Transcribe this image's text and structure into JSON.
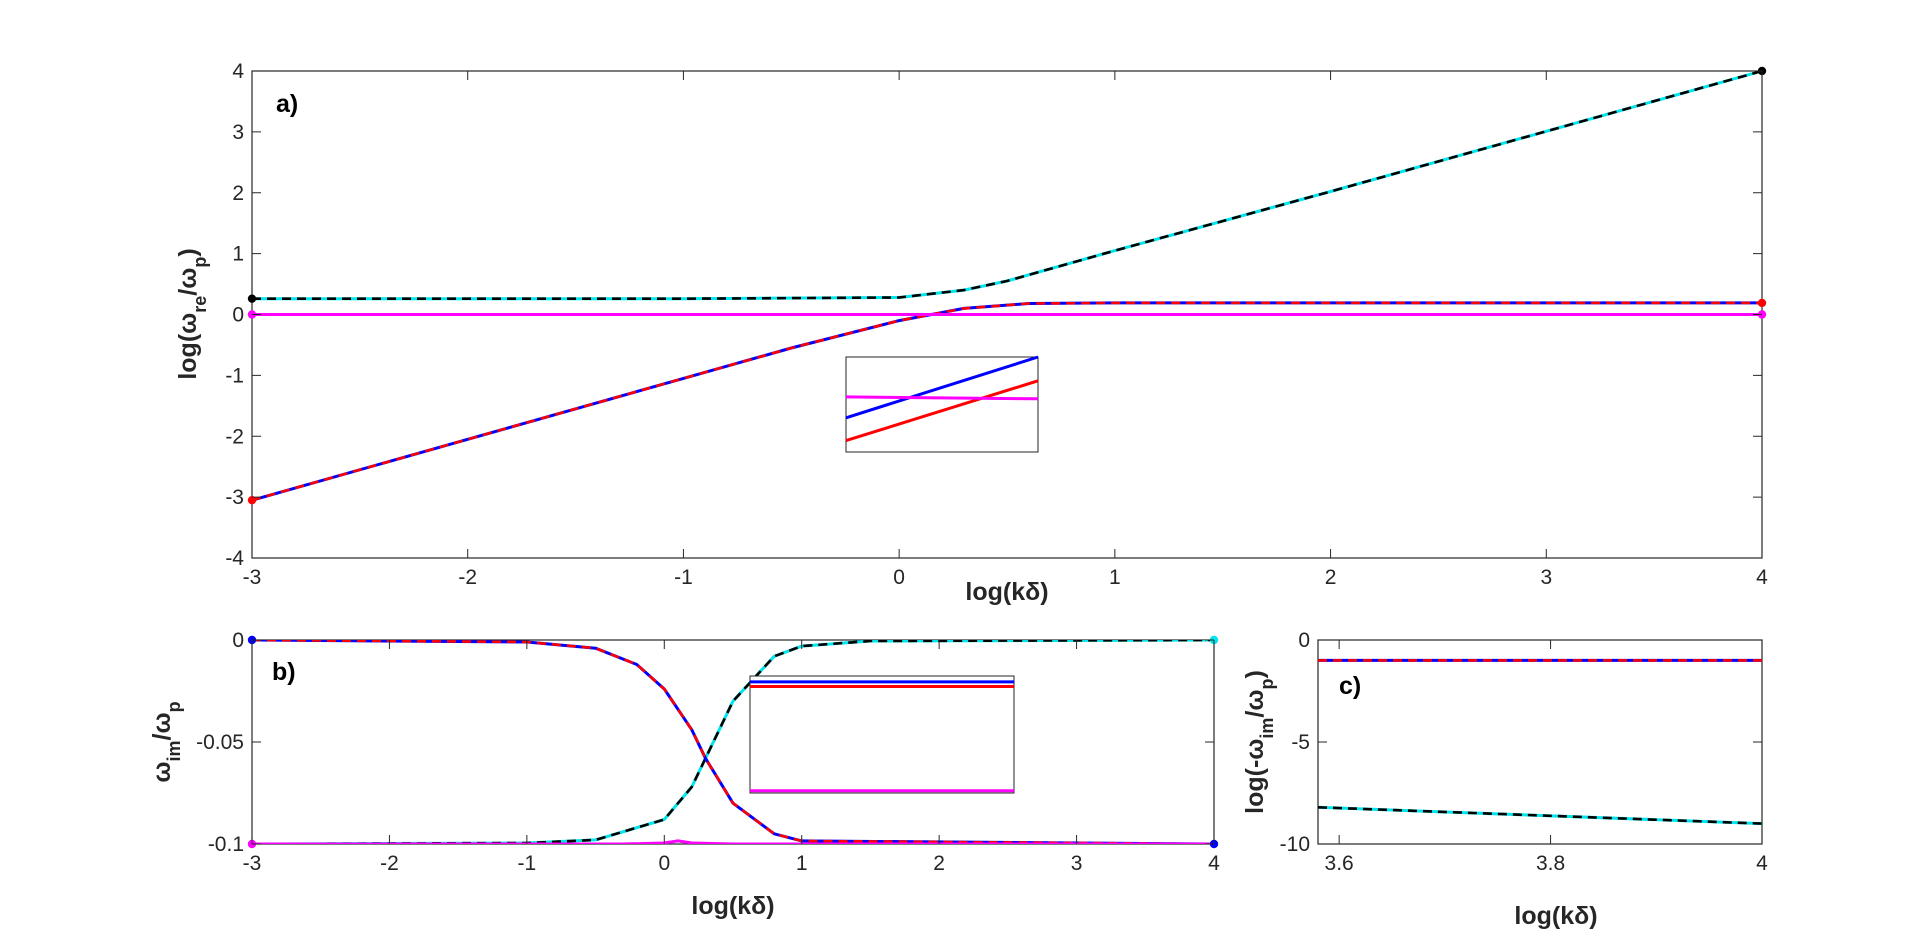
{
  "chart_data": [
    {
      "panel_label": "a)",
      "type": "line",
      "xlabel": "log(kδ)",
      "ylabel": "log(ω_re/ω_p)",
      "xlim": [
        -3,
        4
      ],
      "ylim": [
        -4,
        4
      ],
      "xticks": [
        "-3",
        "-2",
        "-1",
        "0",
        "1",
        "2",
        "3",
        "4"
      ],
      "yticks": [
        "-4",
        "-3",
        "-2",
        "-1",
        "0",
        "1",
        "2",
        "3",
        "4"
      ],
      "grid": false,
      "series": [
        {
          "color": "#00e5ee",
          "style": "solid",
          "x": [
            -3,
            -1,
            0,
            0.3,
            0.5,
            1,
            2,
            3,
            4
          ],
          "y": [
            0.26,
            0.26,
            0.28,
            0.4,
            0.55,
            1.05,
            2.02,
            3.01,
            4.0
          ]
        },
        {
          "color": "#000000",
          "style": "dashed",
          "x": [
            -3,
            -1,
            0,
            0.3,
            0.5,
            1,
            2,
            3,
            4
          ],
          "y": [
            0.26,
            0.26,
            0.28,
            0.4,
            0.55,
            1.05,
            2.02,
            3.01,
            4.0
          ]
        },
        {
          "color": "#0000ff",
          "style": "solid",
          "x": [
            -3,
            -2,
            -1,
            -0.5,
            0,
            0.3,
            0.6,
            1,
            4
          ],
          "y": [
            -3.05,
            -2.05,
            -1.05,
            -0.55,
            -0.1,
            0.1,
            0.18,
            0.19,
            0.19
          ]
        },
        {
          "color": "#ff0000",
          "style": "dashed",
          "x": [
            -3,
            -2,
            -1,
            -0.5,
            0,
            0.3,
            0.6,
            1,
            4
          ],
          "y": [
            -3.05,
            -2.05,
            -1.05,
            -0.55,
            -0.1,
            0.1,
            0.18,
            0.19,
            0.19
          ]
        },
        {
          "color": "#ff00ff",
          "style": "solid",
          "x": [
            -3,
            4
          ],
          "y": [
            0,
            0
          ]
        }
      ],
      "endpoints": [
        {
          "x": -3,
          "y": 0.26,
          "color": "#000000"
        },
        {
          "x": 4,
          "y": 4.0,
          "color": "#000000"
        },
        {
          "x": -3,
          "y": -3.05,
          "color": "#ff0000"
        },
        {
          "x": 4,
          "y": 0.19,
          "color": "#ff0000"
        },
        {
          "x": -3,
          "y": 0,
          "color": "#ff00ff"
        },
        {
          "x": 4,
          "y": 0,
          "color": "#ff00ff"
        }
      ],
      "inset": {
        "lines": [
          {
            "color": "#0000ff",
            "x": [
              0,
              1
            ],
            "y": [
              0.36,
              1.0
            ]
          },
          {
            "color": "#ff0000",
            "x": [
              0,
              1
            ],
            "y": [
              0.12,
              0.75
            ]
          },
          {
            "color": "#ff00ff",
            "x": [
              0,
              1
            ],
            "y": [
              0.58,
              0.56
            ]
          }
        ]
      }
    },
    {
      "panel_label": "b)",
      "type": "line",
      "xlabel": "log(kδ)",
      "ylabel": "ω_im/ω_p",
      "xlim": [
        -3,
        4
      ],
      "ylim": [
        -0.1,
        0
      ],
      "xticks": [
        "-3",
        "-2",
        "-1",
        "0",
        "1",
        "2",
        "3",
        "4"
      ],
      "yticks": [
        "-0.1",
        "-0.05",
        "0"
      ],
      "grid": false,
      "series": [
        {
          "color": "#00e5ee",
          "style": "solid",
          "x": [
            -3,
            -1,
            -0.5,
            0,
            0.2,
            0.3,
            0.5,
            0.8,
            1,
            1.5,
            4
          ],
          "y": [
            -0.1,
            -0.0995,
            -0.098,
            -0.088,
            -0.072,
            -0.058,
            -0.03,
            -0.008,
            -0.003,
            -0.0005,
            0
          ]
        },
        {
          "color": "#000000",
          "style": "dashed",
          "x": [
            -3,
            -1,
            -0.5,
            0,
            0.2,
            0.3,
            0.5,
            0.8,
            1,
            1.5,
            4
          ],
          "y": [
            -0.1,
            -0.0995,
            -0.098,
            -0.088,
            -0.072,
            -0.058,
            -0.03,
            -0.008,
            -0.003,
            -0.0005,
            0
          ]
        },
        {
          "color": "#0000ff",
          "style": "solid",
          "x": [
            -3,
            -1,
            -0.5,
            -0.2,
            0,
            0.2,
            0.3,
            0.5,
            0.8,
            1,
            4
          ],
          "y": [
            0,
            -0.001,
            -0.004,
            -0.012,
            -0.024,
            -0.044,
            -0.058,
            -0.08,
            -0.095,
            -0.0985,
            -0.1
          ]
        },
        {
          "color": "#ff0000",
          "style": "dashed",
          "x": [
            -3,
            -1,
            -0.5,
            -0.2,
            0,
            0.2,
            0.3,
            0.5,
            0.8,
            1,
            4
          ],
          "y": [
            0,
            -0.001,
            -0.004,
            -0.012,
            -0.024,
            -0.044,
            -0.058,
            -0.08,
            -0.095,
            -0.0985,
            -0.1
          ]
        },
        {
          "color": "#ff00ff",
          "style": "solid",
          "x": [
            -3,
            -0.3,
            0,
            0.1,
            0.2,
            0.5,
            4
          ],
          "y": [
            -0.1,
            -0.1,
            -0.0995,
            -0.0985,
            -0.0995,
            -0.1,
            -0.1
          ]
        }
      ],
      "endpoints": [
        {
          "x": -3,
          "y": 0,
          "color": "#0000ff"
        },
        {
          "x": 4,
          "y": 0,
          "color": "#00e5ee"
        },
        {
          "x": -3,
          "y": -0.1,
          "color": "#ff00ff"
        },
        {
          "x": 4,
          "y": -0.1,
          "color": "#0000ff"
        }
      ],
      "inset": {
        "lines": [
          {
            "color": "#0000ff",
            "x": [
              0,
              1
            ],
            "y": [
              0.95,
              0.95
            ]
          },
          {
            "color": "#ff0000",
            "x": [
              0,
              1
            ],
            "y": [
              0.91,
              0.91
            ]
          },
          {
            "color": "#ff00ff",
            "x": [
              0,
              1
            ],
            "y": [
              0.02,
              0.02
            ]
          }
        ]
      }
    },
    {
      "panel_label": "c)",
      "type": "line",
      "xlabel": "log(kδ)",
      "ylabel": "log(-ω_im/ω_p)",
      "xlim": [
        3.58,
        4
      ],
      "ylim": [
        -10,
        0
      ],
      "xticks": [
        "3.6",
        "3.8",
        "4"
      ],
      "yticks": [
        "-10",
        "-5",
        "0"
      ],
      "grid": false,
      "series": [
        {
          "color": "#00e5ee",
          "style": "solid",
          "x": [
            3.58,
            4
          ],
          "y": [
            -8.2,
            -9.0
          ]
        },
        {
          "color": "#000000",
          "style": "dashed",
          "x": [
            3.58,
            4
          ],
          "y": [
            -8.2,
            -9.0
          ]
        },
        {
          "color": "#0000ff",
          "style": "solid",
          "x": [
            3.58,
            4
          ],
          "y": [
            -1.0,
            -1.0
          ]
        },
        {
          "color": "#ff0000",
          "style": "dashed",
          "x": [
            3.58,
            4
          ],
          "y": [
            -1.0,
            -1.0
          ]
        }
      ]
    }
  ]
}
